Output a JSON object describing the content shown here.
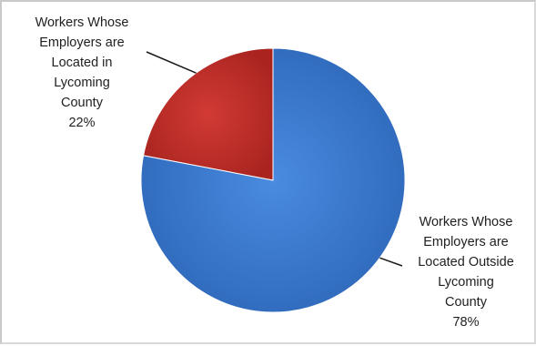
{
  "chart_data": {
    "type": "pie",
    "title": "",
    "series": [
      {
        "values": [
          22,
          78
        ],
        "labels": [
          [
            "Workers Whose",
            "Employers are",
            "Located in",
            "Lycoming",
            "County",
            "22%"
          ],
          [
            "Workers Whose",
            "Employers are",
            "Located Outside",
            "Lycoming",
            "County",
            "78%"
          ]
        ],
        "categories": [
          "Workers Whose Employers are Located in Lycoming County",
          "Workers Whose Employers are Located Outside Lycoming County"
        ],
        "percent_labels": [
          "22%",
          "78%"
        ],
        "colors": [
          "#c0302b",
          "#3d7ed3"
        ]
      }
    ],
    "legend": "none",
    "style": "3d-bevel"
  }
}
